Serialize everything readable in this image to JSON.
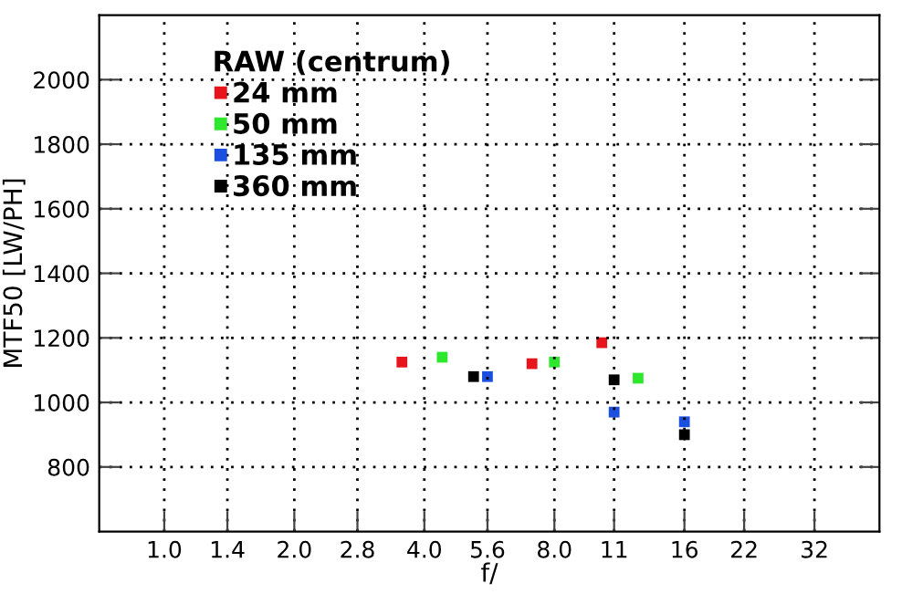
{
  "chart_data": {
    "type": "scatter",
    "xlabel": "f/",
    "ylabel": "MTF50 [LW/PH]",
    "legend_title": "RAW (centrum)",
    "log": "x",
    "grid": true,
    "legend": "top left",
    "marker": "square",
    "xlim": [
      0.707,
      45.25
    ],
    "ylim": [
      600,
      2200
    ],
    "xticks": [
      {
        "value": 1,
        "label": "1.0"
      },
      {
        "value": 1.4,
        "label": "1.4"
      },
      {
        "value": 2,
        "label": "2.0"
      },
      {
        "value": 2.8,
        "label": "2.8"
      },
      {
        "value": 4,
        "label": "4.0"
      },
      {
        "value": 5.6,
        "label": "5.6"
      },
      {
        "value": 8,
        "label": "8.0"
      },
      {
        "value": 11,
        "label": "11"
      },
      {
        "value": 16,
        "label": "16"
      },
      {
        "value": 22,
        "label": "22"
      },
      {
        "value": 32,
        "label": "32"
      }
    ],
    "yticks": [
      800,
      1000,
      1200,
      1400,
      1600,
      1800,
      2000
    ],
    "series": [
      {
        "name": "24 mm",
        "color": "#e8141c",
        "x": [
          3.55,
          7.1,
          10.3
        ],
        "values": [
          1125,
          1120,
          1185
        ]
      },
      {
        "name": "50 mm",
        "color": "#2ee82e",
        "x": [
          4.4,
          8,
          12.5
        ],
        "values": [
          1140,
          1125,
          1075
        ]
      },
      {
        "name": "135 mm",
        "color": "#1a4fe0",
        "x": [
          5.6,
          11,
          16
        ],
        "values": [
          1080,
          970,
          940
        ]
      },
      {
        "name": "360 mm",
        "color": "#000000",
        "x": [
          5.2,
          11,
          16
        ],
        "values": [
          1080,
          1070,
          900
        ]
      }
    ]
  }
}
